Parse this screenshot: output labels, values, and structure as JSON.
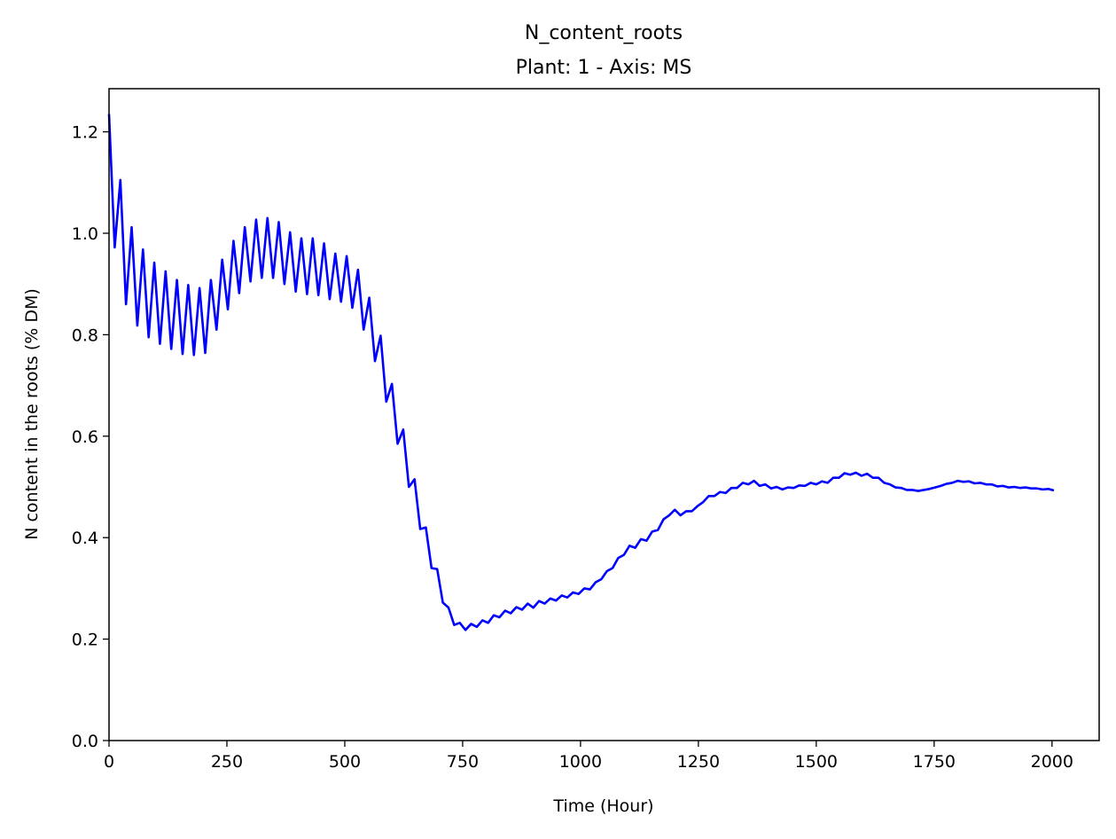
{
  "chart_data": {
    "type": "line",
    "title": "N_content_roots",
    "subtitle": "Plant: 1 - Axis: MS",
    "xlabel": "Time (Hour)",
    "ylabel": "N content in the roots (% DM)",
    "xlim": [
      0,
      2100
    ],
    "ylim": [
      0,
      1.285
    ],
    "xticks": [
      0,
      250,
      500,
      750,
      1000,
      1250,
      1500,
      1750,
      2000
    ],
    "yticks": [
      0.0,
      0.2,
      0.4,
      0.6,
      0.8,
      1.0,
      1.2
    ],
    "xtick_labels": [
      "0",
      "250",
      "500",
      "750",
      "1000",
      "1250",
      "1500",
      "1750",
      "2000"
    ],
    "ytick_labels": [
      "0.0",
      "0.2",
      "0.4",
      "0.6",
      "0.8",
      "1.0",
      "1.2"
    ],
    "grid": false,
    "legend": "none",
    "series": [
      {
        "color": "#0000ff",
        "x": [
          0,
          12,
          24,
          36,
          48,
          60,
          72,
          84,
          96,
          108,
          120,
          132,
          144,
          156,
          168,
          180,
          192,
          204,
          216,
          228,
          240,
          252,
          264,
          276,
          288,
          300,
          312,
          324,
          336,
          348,
          360,
          372,
          384,
          396,
          408,
          420,
          432,
          444,
          456,
          468,
          480,
          492,
          504,
          516,
          528,
          540,
          552,
          564,
          576,
          588,
          600,
          612,
          624,
          636,
          648,
          660,
          672,
          684,
          696,
          708,
          720,
          732,
          744,
          756,
          768,
          780,
          792,
          804,
          816,
          828,
          840,
          852,
          864,
          876,
          888,
          900,
          912,
          924,
          936,
          948,
          960,
          972,
          984,
          996,
          1008,
          1020,
          1032,
          1044,
          1056,
          1068,
          1080,
          1092,
          1104,
          1116,
          1128,
          1140,
          1152,
          1164,
          1176,
          1188,
          1200,
          1212,
          1224,
          1236,
          1248,
          1260,
          1272,
          1284,
          1296,
          1308,
          1320,
          1332,
          1344,
          1356,
          1368,
          1380,
          1392,
          1404,
          1416,
          1428,
          1440,
          1452,
          1464,
          1476,
          1488,
          1500,
          1512,
          1524,
          1536,
          1548,
          1560,
          1572,
          1584,
          1596,
          1608,
          1620,
          1632,
          1644,
          1656,
          1668,
          1680,
          1692,
          1704,
          1716,
          1728,
          1740,
          1752,
          1764,
          1776,
          1788,
          1800,
          1812,
          1824,
          1836,
          1848,
          1860,
          1872,
          1884,
          1896,
          1908,
          1920,
          1932,
          1944,
          1956,
          1968,
          1980,
          1992,
          2004
        ],
        "y": [
          1.235,
          0.972,
          1.105,
          0.86,
          1.012,
          0.818,
          0.968,
          0.795,
          0.942,
          0.782,
          0.925,
          0.772,
          0.908,
          0.762,
          0.898,
          0.76,
          0.892,
          0.764,
          0.908,
          0.81,
          0.948,
          0.85,
          0.985,
          0.882,
          1.012,
          0.905,
          1.027,
          0.912,
          1.03,
          0.912,
          1.022,
          0.9,
          1.002,
          0.885,
          0.99,
          0.88,
          0.99,
          0.878,
          0.98,
          0.87,
          0.96,
          0.865,
          0.955,
          0.853,
          0.928,
          0.81,
          0.873,
          0.748,
          0.798,
          0.668,
          0.703,
          0.585,
          0.613,
          0.5,
          0.515,
          0.417,
          0.42,
          0.34,
          0.338,
          0.272,
          0.262,
          0.228,
          0.232,
          0.218,
          0.23,
          0.224,
          0.237,
          0.232,
          0.247,
          0.243,
          0.256,
          0.251,
          0.263,
          0.258,
          0.27,
          0.262,
          0.275,
          0.27,
          0.28,
          0.276,
          0.286,
          0.282,
          0.292,
          0.289,
          0.3,
          0.298,
          0.312,
          0.318,
          0.334,
          0.34,
          0.36,
          0.366,
          0.384,
          0.38,
          0.397,
          0.394,
          0.412,
          0.415,
          0.436,
          0.444,
          0.455,
          0.444,
          0.452,
          0.452,
          0.462,
          0.47,
          0.482,
          0.482,
          0.49,
          0.488,
          0.498,
          0.498,
          0.508,
          0.505,
          0.512,
          0.502,
          0.505,
          0.497,
          0.5,
          0.495,
          0.499,
          0.498,
          0.503,
          0.502,
          0.508,
          0.505,
          0.511,
          0.508,
          0.518,
          0.518,
          0.527,
          0.524,
          0.528,
          0.522,
          0.526,
          0.518,
          0.518,
          0.508,
          0.505,
          0.499,
          0.498,
          0.494,
          0.494,
          0.492,
          0.494,
          0.496,
          0.499,
          0.502,
          0.506,
          0.508,
          0.512,
          0.51,
          0.511,
          0.507,
          0.508,
          0.505,
          0.505,
          0.501,
          0.502,
          0.499,
          0.5,
          0.498,
          0.499,
          0.497,
          0.497,
          0.495,
          0.496,
          0.493
        ]
      }
    ]
  }
}
